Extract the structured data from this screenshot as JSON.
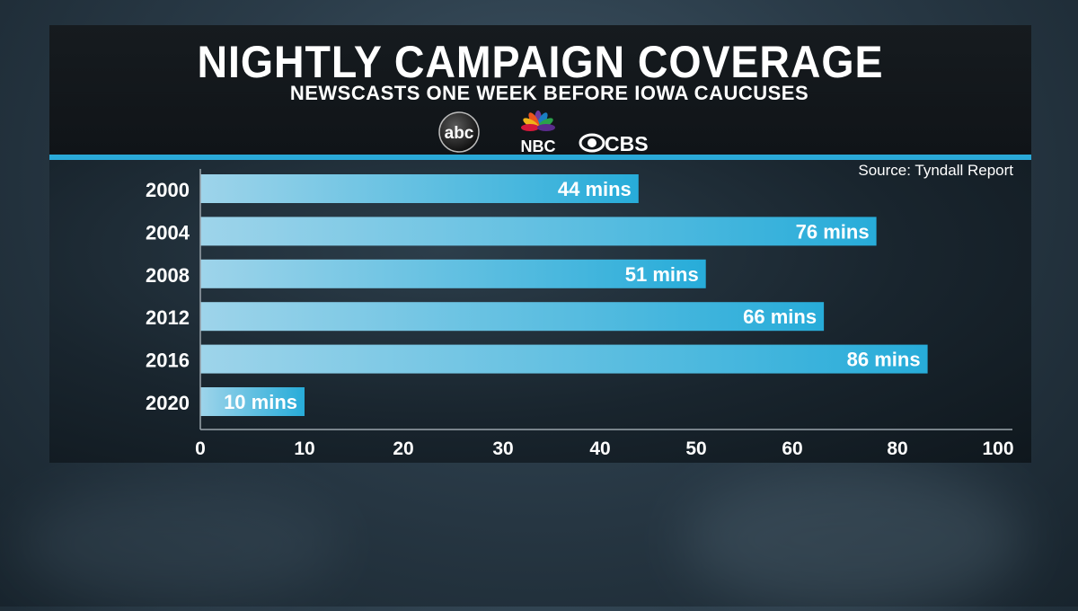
{
  "title": "NIGHTLY CAMPAIGN COVERAGE",
  "subtitle": "NEWSCASTS ONE WEEK BEFORE IOWA CAUCUSES",
  "source": "Source: Tyndall Report",
  "logos": {
    "abc": "abc",
    "nbc": "NBC",
    "cbs": "CBS"
  },
  "colors": {
    "bar_start": "#9ed4ea",
    "bar_end": "#27acd9",
    "accent": "#2aa9d8",
    "panel": "#0d1317"
  },
  "chart_data": {
    "type": "bar",
    "orientation": "horizontal",
    "categories": [
      "2000",
      "2004",
      "2008",
      "2012",
      "2016",
      "2020"
    ],
    "values": [
      44,
      76,
      51,
      66,
      86,
      10
    ],
    "data_labels": [
      "44 mins",
      "76 mins",
      "51 mins",
      "66 mins",
      "86 mins",
      "10 mins"
    ],
    "x_ticks": [
      "0",
      "10",
      "20",
      "30",
      "40",
      "50",
      "60",
      "80",
      "100"
    ],
    "grid": false,
    "legend": "none"
  }
}
